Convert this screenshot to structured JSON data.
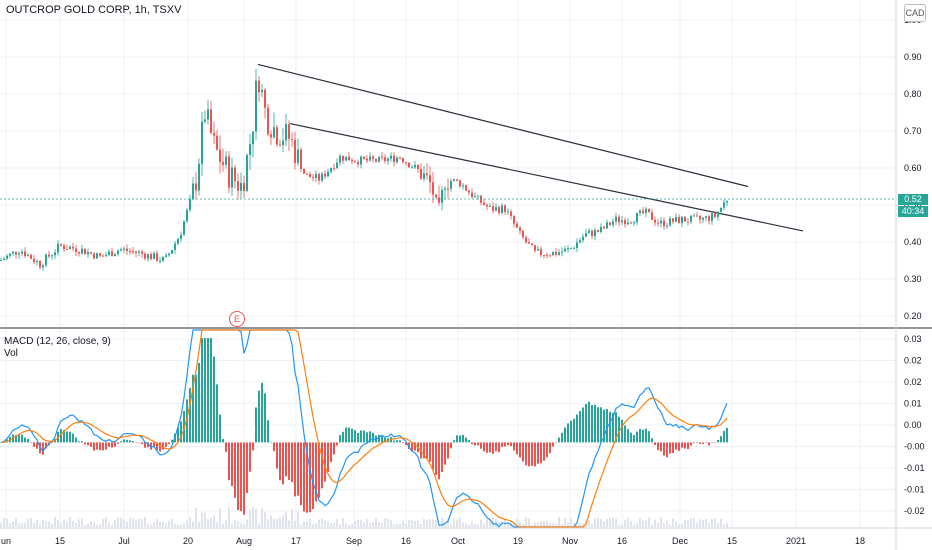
{
  "header": {
    "title": "OUTCROP GOLD CORP, 1h, TSXV",
    "currency": "CAD",
    "last_price": "0.52",
    "countdown": "40:34"
  },
  "macd_panel": {
    "label": "MACD (12, 26, close, 9)",
    "vol_label": "Vol"
  },
  "earnings_marker": "E",
  "colors": {
    "up": "#26a69a",
    "down": "#ef5350",
    "macd_line": "#2196f3",
    "signal_line": "#ff7f0e",
    "trendline": "#2a2e39",
    "grid": "#eef0f4"
  },
  "chart_data": [
    {
      "type": "candlestick",
      "title": "OUTCROP GOLD CORP, 1h, TSXV",
      "y_axis_ticks": [
        "1.00",
        "0.90",
        "0.80",
        "0.70",
        "0.60",
        "0.50",
        "0.40",
        "0.30",
        "0.20"
      ],
      "ylim": [
        0.17,
        1.02
      ],
      "x_tick_labels": [
        "un",
        "15",
        "Jul",
        "20",
        "Aug",
        "17",
        "Sep",
        "16",
        "Oct",
        "19",
        "Nov",
        "16",
        "Dec",
        "15",
        "2021",
        "18"
      ],
      "close_points": [
        {
          "x": 0,
          "y": 0.35
        },
        {
          "x": 20,
          "y": 0.38
        },
        {
          "x": 40,
          "y": 0.34
        },
        {
          "x": 60,
          "y": 0.39
        },
        {
          "x": 80,
          "y": 0.38
        },
        {
          "x": 100,
          "y": 0.36
        },
        {
          "x": 120,
          "y": 0.38
        },
        {
          "x": 140,
          "y": 0.37
        },
        {
          "x": 165,
          "y": 0.35
        },
        {
          "x": 180,
          "y": 0.42
        },
        {
          "x": 195,
          "y": 0.55
        },
        {
          "x": 205,
          "y": 0.75
        },
        {
          "x": 215,
          "y": 0.65
        },
        {
          "x": 230,
          "y": 0.58
        },
        {
          "x": 242,
          "y": 0.55
        },
        {
          "x": 252,
          "y": 0.7
        },
        {
          "x": 258,
          "y": 0.86
        },
        {
          "x": 266,
          "y": 0.74
        },
        {
          "x": 276,
          "y": 0.7
        },
        {
          "x": 290,
          "y": 0.68
        },
        {
          "x": 305,
          "y": 0.58
        },
        {
          "x": 320,
          "y": 0.57
        },
        {
          "x": 340,
          "y": 0.63
        },
        {
          "x": 360,
          "y": 0.62
        },
        {
          "x": 380,
          "y": 0.62
        },
        {
          "x": 400,
          "y": 0.63
        },
        {
          "x": 420,
          "y": 0.59
        },
        {
          "x": 432,
          "y": 0.55
        },
        {
          "x": 438,
          "y": 0.46
        },
        {
          "x": 445,
          "y": 0.57
        },
        {
          "x": 460,
          "y": 0.56
        },
        {
          "x": 475,
          "y": 0.52
        },
        {
          "x": 490,
          "y": 0.49
        },
        {
          "x": 505,
          "y": 0.49
        },
        {
          "x": 520,
          "y": 0.42
        },
        {
          "x": 535,
          "y": 0.37
        },
        {
          "x": 555,
          "y": 0.37
        },
        {
          "x": 570,
          "y": 0.38
        },
        {
          "x": 585,
          "y": 0.42
        },
        {
          "x": 600,
          "y": 0.43
        },
        {
          "x": 615,
          "y": 0.46
        },
        {
          "x": 630,
          "y": 0.46
        },
        {
          "x": 645,
          "y": 0.48
        },
        {
          "x": 660,
          "y": 0.45
        },
        {
          "x": 680,
          "y": 0.46
        },
        {
          "x": 700,
          "y": 0.46
        },
        {
          "x": 715,
          "y": 0.47
        },
        {
          "x": 728,
          "y": 0.52
        }
      ],
      "trendlines": [
        {
          "from": {
            "x": 258,
            "y": 0.88
          },
          "to": {
            "x": 748,
            "y": 0.55
          }
        },
        {
          "from": {
            "x": 290,
            "y": 0.72
          },
          "to": {
            "x": 803,
            "y": 0.43
          }
        }
      ]
    },
    {
      "type": "macd",
      "title": "MACD (12, 26, close, 9)",
      "y_axis_ticks": [
        "0.03",
        "0.02",
        "0.02",
        "0.01",
        "0.00",
        "-0.00",
        "-0.01",
        "-0.01",
        "-0.02"
      ],
      "ylim": [
        -0.022,
        0.032
      ]
    }
  ]
}
